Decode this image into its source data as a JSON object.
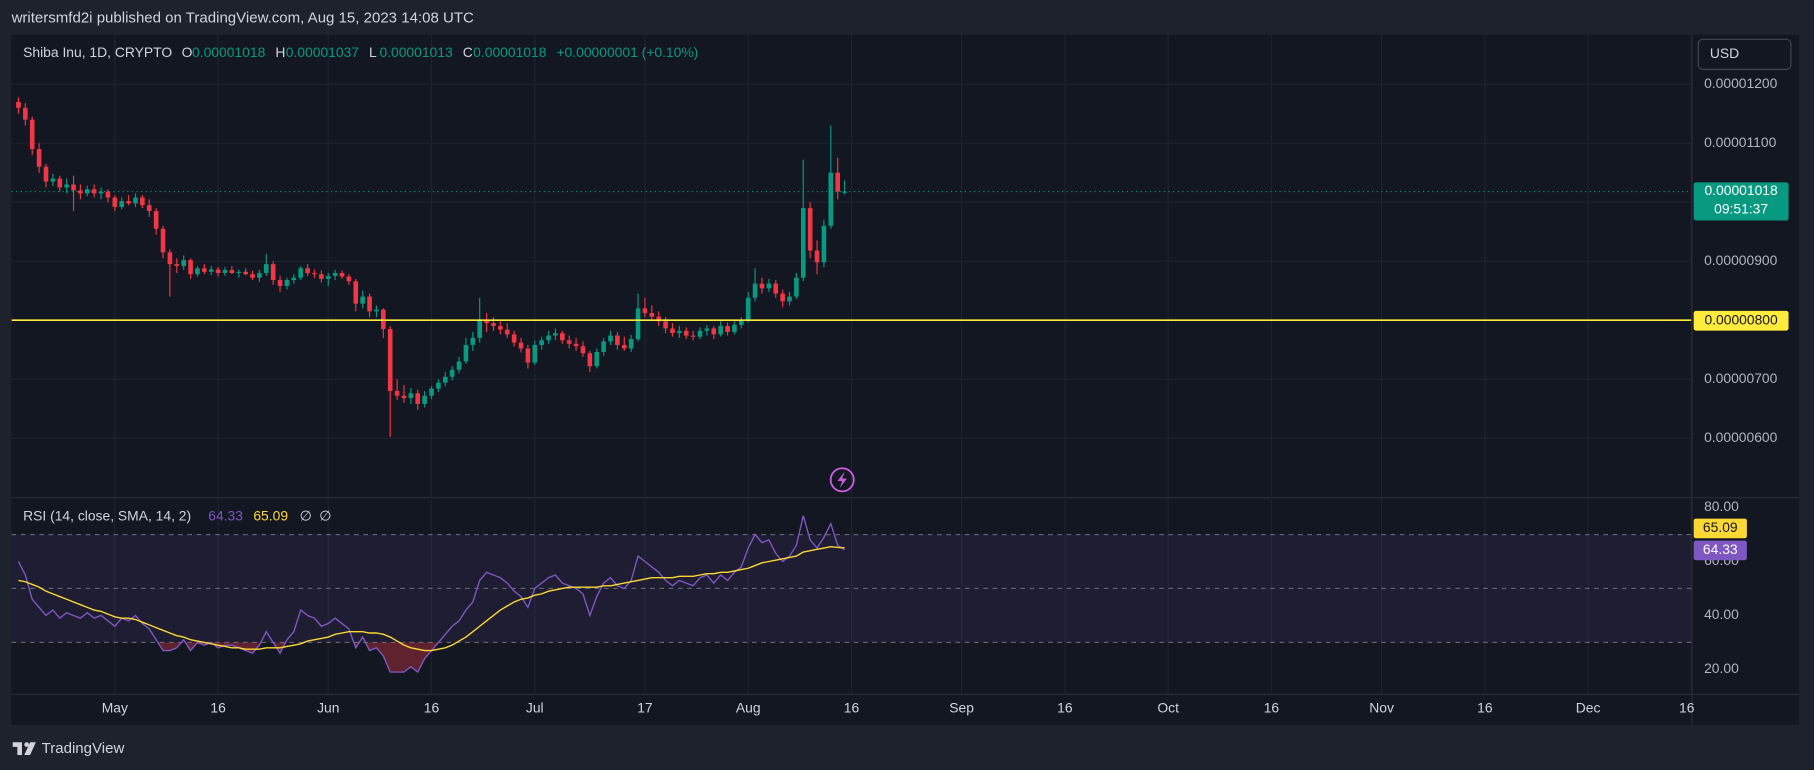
{
  "publisher": "writersmfd2i published on TradingView.com, Aug 15, 2023 14:08 UTC",
  "brand": "TradingView",
  "currency": "USD",
  "chart_data": {
    "type": "candlestick",
    "symbol": "Shiba Inu, 1D, CRYPTO",
    "ohlc": [
      {
        "label": "O",
        "value": "0.00001018"
      },
      {
        "label": "H",
        "value": "0.00001037"
      },
      {
        "label": "L",
        "value": "0.00001013"
      },
      {
        "label": "C",
        "value": "0.00001018"
      }
    ],
    "change": "+0.00000001 (+0.10%)",
    "up_color": "#089981",
    "down_color": "#f23645",
    "grid": true,
    "xlim": [
      "2023-04-16",
      "2023-12-16"
    ],
    "ylim": [
      5e-06,
      1.284e-05
    ],
    "yticks": [
      {
        "value": 6e-06,
        "label": "0.00000600"
      },
      {
        "value": 7e-06,
        "label": "0.00000700"
      },
      {
        "value": 8e-06,
        "label": "0.00000800"
      },
      {
        "value": 9e-06,
        "label": "0.00000900"
      },
      {
        "value": 1e-05,
        "label": "0.00001000"
      },
      {
        "value": 1.1e-05,
        "label": "0.00001100"
      },
      {
        "value": 1.2e-05,
        "label": "0.00001200"
      }
    ],
    "hline": {
      "value": 8e-06,
      "label": "0.00000800",
      "color": "#ffeb3b"
    },
    "last_price_label": "0.00001018",
    "countdown": "09:51:37",
    "x": [
      "2023-04-17",
      "2023-04-18",
      "2023-04-19",
      "2023-04-20",
      "2023-04-21",
      "2023-04-22",
      "2023-04-23",
      "2023-04-24",
      "2023-04-25",
      "2023-04-26",
      "2023-04-27",
      "2023-04-28",
      "2023-04-29",
      "2023-04-30",
      "2023-05-01",
      "2023-05-02",
      "2023-05-03",
      "2023-05-04",
      "2023-05-05",
      "2023-05-06",
      "2023-05-07",
      "2023-05-08",
      "2023-05-09",
      "2023-05-10",
      "2023-05-11",
      "2023-05-12",
      "2023-05-13",
      "2023-05-14",
      "2023-05-15",
      "2023-05-16",
      "2023-05-17",
      "2023-05-18",
      "2023-05-19",
      "2023-05-20",
      "2023-05-21",
      "2023-05-22",
      "2023-05-23",
      "2023-05-24",
      "2023-05-25",
      "2023-05-26",
      "2023-05-27",
      "2023-05-28",
      "2023-05-29",
      "2023-05-30",
      "2023-05-31",
      "2023-06-01",
      "2023-06-02",
      "2023-06-03",
      "2023-06-04",
      "2023-06-05",
      "2023-06-06",
      "2023-06-07",
      "2023-06-08",
      "2023-06-09",
      "2023-06-10",
      "2023-06-11",
      "2023-06-12",
      "2023-06-13",
      "2023-06-14",
      "2023-06-15",
      "2023-06-16",
      "2023-06-17",
      "2023-06-18",
      "2023-06-19",
      "2023-06-20",
      "2023-06-21",
      "2023-06-22",
      "2023-06-23",
      "2023-06-24",
      "2023-06-25",
      "2023-06-26",
      "2023-06-27",
      "2023-06-28",
      "2023-06-29",
      "2023-06-30",
      "2023-07-01",
      "2023-07-02",
      "2023-07-03",
      "2023-07-04",
      "2023-07-05",
      "2023-07-06",
      "2023-07-07",
      "2023-07-08",
      "2023-07-09",
      "2023-07-10",
      "2023-07-11",
      "2023-07-12",
      "2023-07-13",
      "2023-07-14",
      "2023-07-15",
      "2023-07-16",
      "2023-07-17",
      "2023-07-18",
      "2023-07-19",
      "2023-07-20",
      "2023-07-21",
      "2023-07-22",
      "2023-07-23",
      "2023-07-24",
      "2023-07-25",
      "2023-07-26",
      "2023-07-27",
      "2023-07-28",
      "2023-07-29",
      "2023-07-30",
      "2023-07-31",
      "2023-08-01",
      "2023-08-02",
      "2023-08-03",
      "2023-08-04",
      "2023-08-05",
      "2023-08-06",
      "2023-08-07",
      "2023-08-08",
      "2023-08-09",
      "2023-08-10",
      "2023-08-11",
      "2023-08-12",
      "2023-08-13",
      "2023-08-14",
      "2023-08-15"
    ],
    "open": [
      1.17e-05,
      1.16e-05,
      1.14e-05,
      1.09e-05,
      1.06e-05,
      1.035e-05,
      1.04e-05,
      1.025e-05,
      1.03e-05,
      1.02e-05,
      1.015e-05,
      1.022e-05,
      1.015e-05,
      1.018e-05,
      1.008e-05,
      9.92e-06,
      1.002e-05,
      9.98e-06,
      1.008e-05,
      9.95e-06,
      9.85e-06,
      9.55e-06,
      9.15e-06,
      8.95e-06,
      8.92e-06,
      9.02e-06,
      8.78e-06,
      8.88e-06,
      8.82e-06,
      8.86e-06,
      8.8e-06,
      8.85e-06,
      8.8e-06,
      8.82e-06,
      8.78e-06,
      8.72e-06,
      8.8e-06,
      8.95e-06,
      8.68e-06,
      8.58e-06,
      8.68e-06,
      8.72e-06,
      8.88e-06,
      8.8e-06,
      8.78e-06,
      8.7e-06,
      8.75e-06,
      8.8e-06,
      8.74e-06,
      8.66e-06,
      8.28e-06,
      8.4e-06,
      8.15e-06,
      8.18e-06,
      7.85e-06,
      6.8e-06,
      6.72e-06,
      6.68e-06,
      6.76e-06,
      6.58e-06,
      6.72e-06,
      6.84e-06,
      6.94e-06,
      7.04e-06,
      7.16e-06,
      7.3e-06,
      7.58e-06,
      7.7e-06,
      8e-06,
      7.95e-06,
      7.9e-06,
      7.84e-06,
      7.76e-06,
      7.62e-06,
      7.52e-06,
      7.28e-06,
      7.58e-06,
      7.66e-06,
      7.74e-06,
      7.78e-06,
      7.66e-06,
      7.6e-06,
      7.56e-06,
      7.44e-06,
      7.22e-06,
      7.46e-06,
      7.64e-06,
      7.74e-06,
      7.58e-06,
      7.52e-06,
      7.68e-06,
      8.2e-06,
      8.12e-06,
      8.06e-06,
      7.98e-06,
      7.86e-06,
      7.78e-06,
      7.82e-06,
      7.74e-06,
      7.72e-06,
      7.82e-06,
      7.86e-06,
      7.76e-06,
      7.9e-06,
      7.8e-06,
      7.92e-06,
      8e-06,
      8.38e-06,
      8.62e-06,
      8.54e-06,
      8.62e-06,
      8.45e-06,
      8.32e-06,
      8.4e-06,
      8.72e-06,
      9.9e-06,
      9.18e-06,
      8.98e-06,
      9.6e-06,
      1.05e-05,
      1.018e-05
    ],
    "high": [
      1.178e-05,
      1.168e-05,
      1.145e-05,
      1.1e-05,
      1.065e-05,
      1.048e-05,
      1.045e-05,
      1.04e-05,
      1.045e-05,
      1.03e-05,
      1.028e-05,
      1.03e-05,
      1.025e-05,
      1.022e-05,
      1.012e-05,
      1.008e-05,
      1.012e-05,
      1.015e-05,
      1.012e-05,
      1.005e-05,
      9.9e-06,
      9.6e-06,
      9.2e-06,
      9.05e-06,
      9.1e-06,
      9.05e-06,
      8.92e-06,
      8.95e-06,
      8.92e-06,
      8.9e-06,
      8.9e-06,
      8.92e-06,
      8.86e-06,
      8.88e-06,
      8.84e-06,
      8.85e-06,
      9.12e-06,
      9e-06,
      8.75e-06,
      8.72e-06,
      8.78e-06,
      8.92e-06,
      8.95e-06,
      8.86e-06,
      8.84e-06,
      8.8e-06,
      8.85e-06,
      8.84e-06,
      8.78e-06,
      8.7e-06,
      8.5e-06,
      8.45e-06,
      8.25e-06,
      8.2e-06,
      7.9e-06,
      7e-06,
      6.9e-06,
      6.85e-06,
      6.82e-06,
      6.8e-06,
      6.88e-06,
      7e-06,
      7.12e-06,
      7.22e-06,
      7.38e-06,
      7.7e-06,
      7.8e-06,
      8.38e-06,
      8.12e-06,
      8.05e-06,
      7.98e-06,
      7.95e-06,
      7.82e-06,
      7.7e-06,
      7.58e-06,
      7.65e-06,
      7.72e-06,
      7.82e-06,
      7.86e-06,
      7.82e-06,
      7.74e-06,
      7.7e-06,
      7.64e-06,
      7.48e-06,
      7.52e-06,
      7.7e-06,
      7.82e-06,
      7.8e-06,
      7.72e-06,
      7.75e-06,
      8.45e-06,
      8.38e-06,
      8.25e-06,
      8.15e-06,
      8.05e-06,
      7.95e-06,
      7.9e-06,
      7.88e-06,
      7.82e-06,
      7.88e-06,
      7.92e-06,
      7.9e-06,
      7.98e-06,
      7.96e-06,
      7.98e-06,
      8.05e-06,
      8.48e-06,
      8.88e-06,
      8.72e-06,
      8.7e-06,
      8.68e-06,
      8.52e-06,
      8.48e-06,
      8.8e-06,
      1.072e-05,
      1e-05,
      9.35e-06,
      9.7e-06,
      1.13e-05,
      1.075e-05,
      1.037e-05
    ],
    "low": [
      1.15e-05,
      1.13e-05,
      1.08e-05,
      1.05e-05,
      1.025e-05,
      1.028e-05,
      1.018e-05,
      1.015e-05,
      9.85e-06,
      1.005e-05,
      1.01e-05,
      1.008e-05,
      1.005e-05,
      1e-05,
      9.85e-06,
      9.88e-06,
      9.95e-06,
      9.92e-06,
      9.9e-06,
      9.75e-06,
      9.45e-06,
      9.05e-06,
      8.4e-06,
      8.8e-06,
      8.85e-06,
      8.7e-06,
      8.74e-06,
      8.78e-06,
      8.76e-06,
      8.74e-06,
      8.75e-06,
      8.78e-06,
      8.72e-06,
      8.76e-06,
      8.68e-06,
      8.65e-06,
      8.75e-06,
      8.6e-06,
      8.48e-06,
      8.52e-06,
      8.62e-06,
      8.68e-06,
      8.75e-06,
      8.72e-06,
      8.64e-06,
      8.58e-06,
      8.68e-06,
      8.7e-06,
      8.6e-06,
      8.15e-06,
      8.2e-06,
      8.05e-06,
      8.05e-06,
      7.7e-06,
      6.02e-06,
      6.65e-06,
      6.6e-06,
      6.58e-06,
      6.48e-06,
      6.52e-06,
      6.66e-06,
      6.78e-06,
      6.88e-06,
      6.98e-06,
      7.1e-06,
      7.26e-06,
      7.48e-06,
      7.62e-06,
      7.8e-06,
      7.82e-06,
      7.76e-06,
      7.7e-06,
      7.55e-06,
      7.45e-06,
      7.18e-06,
      7.24e-06,
      7.5e-06,
      7.6e-06,
      7.66e-06,
      7.6e-06,
      7.52e-06,
      7.48e-06,
      7.38e-06,
      7.12e-06,
      7.18e-06,
      7.4e-06,
      7.58e-06,
      7.5e-06,
      7.48e-06,
      7.46e-06,
      7.64e-06,
      8.05e-06,
      7.98e-06,
      7.9e-06,
      7.78e-06,
      7.72e-06,
      7.7e-06,
      7.68e-06,
      7.66e-06,
      7.68e-06,
      7.74e-06,
      7.68e-06,
      7.72e-06,
      7.74e-06,
      7.76e-06,
      7.86e-06,
      7.96e-06,
      8.32e-06,
      8.45e-06,
      8.48e-06,
      8.38e-06,
      8.22e-06,
      8.25e-06,
      8.36e-06,
      8.66e-06,
      9.05e-06,
      8.78e-06,
      8.9e-06,
      9.55e-06,
      1.005e-05,
      1.013e-05
    ],
    "close": [
      1.16e-05,
      1.14e-05,
      1.09e-05,
      1.06e-05,
      1.035e-05,
      1.04e-05,
      1.025e-05,
      1.03e-05,
      1.02e-05,
      1.015e-05,
      1.022e-05,
      1.015e-05,
      1.018e-05,
      1.008e-05,
      9.92e-06,
      1.002e-05,
      9.98e-06,
      1.008e-05,
      9.95e-06,
      9.85e-06,
      9.55e-06,
      9.15e-06,
      8.95e-06,
      8.92e-06,
      9.02e-06,
      8.78e-06,
      8.88e-06,
      8.82e-06,
      8.86e-06,
      8.8e-06,
      8.85e-06,
      8.8e-06,
      8.82e-06,
      8.78e-06,
      8.72e-06,
      8.8e-06,
      8.95e-06,
      8.68e-06,
      8.58e-06,
      8.68e-06,
      8.72e-06,
      8.88e-06,
      8.8e-06,
      8.78e-06,
      8.7e-06,
      8.75e-06,
      8.8e-06,
      8.74e-06,
      8.66e-06,
      8.28e-06,
      8.4e-06,
      8.15e-06,
      8.18e-06,
      7.85e-06,
      6.8e-06,
      6.72e-06,
      6.68e-06,
      6.76e-06,
      6.58e-06,
      6.72e-06,
      6.84e-06,
      6.94e-06,
      7.04e-06,
      7.16e-06,
      7.3e-06,
      7.58e-06,
      7.7e-06,
      8e-06,
      7.95e-06,
      7.9e-06,
      7.84e-06,
      7.76e-06,
      7.62e-06,
      7.52e-06,
      7.28e-06,
      7.58e-06,
      7.66e-06,
      7.74e-06,
      7.78e-06,
      7.66e-06,
      7.6e-06,
      7.56e-06,
      7.44e-06,
      7.22e-06,
      7.46e-06,
      7.64e-06,
      7.74e-06,
      7.58e-06,
      7.52e-06,
      7.68e-06,
      8.2e-06,
      8.12e-06,
      8.06e-06,
      7.98e-06,
      7.86e-06,
      7.78e-06,
      7.82e-06,
      7.74e-06,
      7.72e-06,
      7.82e-06,
      7.86e-06,
      7.76e-06,
      7.9e-06,
      7.8e-06,
      7.92e-06,
      8e-06,
      8.38e-06,
      8.62e-06,
      8.54e-06,
      8.62e-06,
      8.45e-06,
      8.32e-06,
      8.4e-06,
      8.72e-06,
      9.9e-06,
      9.18e-06,
      8.98e-06,
      9.6e-06,
      1.05e-05,
      1.018e-05,
      1.018e-05
    ],
    "indicator": {
      "type": "line",
      "title": "RSI (14, close, SMA, 14, 2)",
      "na_markers": [
        "∅",
        "∅"
      ],
      "ylim": [
        11,
        83
      ],
      "yticks": [
        {
          "value": 20,
          "label": "20.00"
        },
        {
          "value": 40,
          "label": "40.00"
        },
        {
          "value": 60,
          "label": "60.00"
        },
        {
          "value": 80,
          "label": "80.00"
        }
      ],
      "levels": [
        70,
        50,
        30
      ],
      "band_color": "#7e57c2",
      "oversold_color": "#f23645",
      "xticks": [
        {
          "value": "2023-05-01",
          "label": "May"
        },
        {
          "value": "2023-05-16",
          "label": "16"
        },
        {
          "value": "2023-06-01",
          "label": "Jun"
        },
        {
          "value": "2023-06-16",
          "label": "16"
        },
        {
          "value": "2023-07-01",
          "label": "Jul"
        },
        {
          "value": "2023-07-17",
          "label": "17"
        },
        {
          "value": "2023-08-01",
          "label": "Aug"
        },
        {
          "value": "2023-08-16",
          "label": "16"
        },
        {
          "value": "2023-09-01",
          "label": "Sep"
        },
        {
          "value": "2023-09-16",
          "label": "16"
        },
        {
          "value": "2023-10-01",
          "label": "Oct"
        },
        {
          "value": "2023-10-16",
          "label": "16"
        },
        {
          "value": "2023-11-01",
          "label": "Nov"
        },
        {
          "value": "2023-11-16",
          "label": "16"
        },
        {
          "value": "2023-12-01",
          "label": "Dec"
        },
        {
          "value": "2023-12-16",
          "label": "16"
        }
      ],
      "series": [
        {
          "name": "RSI",
          "color": "#7e57c2",
          "last_label": "64.33",
          "values": [
            60,
            55,
            46,
            43,
            40,
            42,
            39,
            41,
            40,
            39,
            41,
            39,
            40,
            38,
            36,
            39,
            38,
            40,
            37,
            35,
            31,
            27,
            27,
            28,
            31,
            27,
            30,
            29,
            30,
            28,
            29,
            29,
            28,
            27,
            26,
            29,
            34,
            30,
            26,
            31,
            34,
            42,
            40,
            39,
            36,
            37,
            39,
            37,
            35,
            28,
            32,
            27,
            28,
            25,
            19,
            19,
            19,
            21,
            19,
            24,
            27,
            30,
            33,
            36,
            38,
            42,
            45,
            53,
            56,
            55,
            54,
            52,
            49,
            47,
            43,
            50,
            52,
            54,
            55,
            52,
            51,
            50,
            48,
            40,
            47,
            52,
            54,
            51,
            50,
            53,
            62,
            60,
            58,
            56,
            53,
            51,
            53,
            52,
            51,
            54,
            55,
            52,
            55,
            53,
            56,
            58,
            65,
            70,
            67,
            68,
            63,
            60,
            62,
            66,
            77,
            68,
            65,
            69,
            74,
            66,
            64.33
          ]
        },
        {
          "name": "SMA",
          "color": "#fdd835",
          "last_label": "65.09",
          "values": [
            53,
            52.5,
            51.5,
            50.5,
            49,
            48,
            47,
            46,
            45,
            44,
            43,
            42,
            41.5,
            40.5,
            39.5,
            39,
            39,
            38.5,
            37.5,
            36.5,
            35.5,
            34.5,
            33.5,
            32.5,
            32,
            31,
            30.5,
            30,
            29.5,
            29,
            28.5,
            28,
            28,
            27.5,
            27.5,
            27.5,
            28,
            28,
            28,
            28.5,
            29,
            29.5,
            30.5,
            31,
            31.5,
            32,
            33,
            33.5,
            34,
            34,
            34,
            33.5,
            33.5,
            33,
            32,
            30.5,
            29,
            28,
            27.5,
            27,
            27,
            27.5,
            28,
            29,
            30.5,
            32,
            34,
            36,
            38,
            40,
            42,
            43.5,
            45,
            46,
            46.5,
            47.5,
            48,
            49,
            49.5,
            50,
            50.5,
            50.5,
            50.5,
            50.5,
            50.5,
            51,
            51,
            51.5,
            52,
            52.5,
            53,
            53.5,
            54,
            54,
            54,
            54,
            54.5,
            54.5,
            54.5,
            55,
            55.5,
            55.5,
            56,
            56,
            56.5,
            57,
            57.5,
            58.5,
            59.5,
            60,
            60.5,
            61,
            61.5,
            62,
            63.5,
            64,
            64.5,
            65,
            65.5,
            65.2,
            65.09
          ]
        }
      ]
    }
  }
}
